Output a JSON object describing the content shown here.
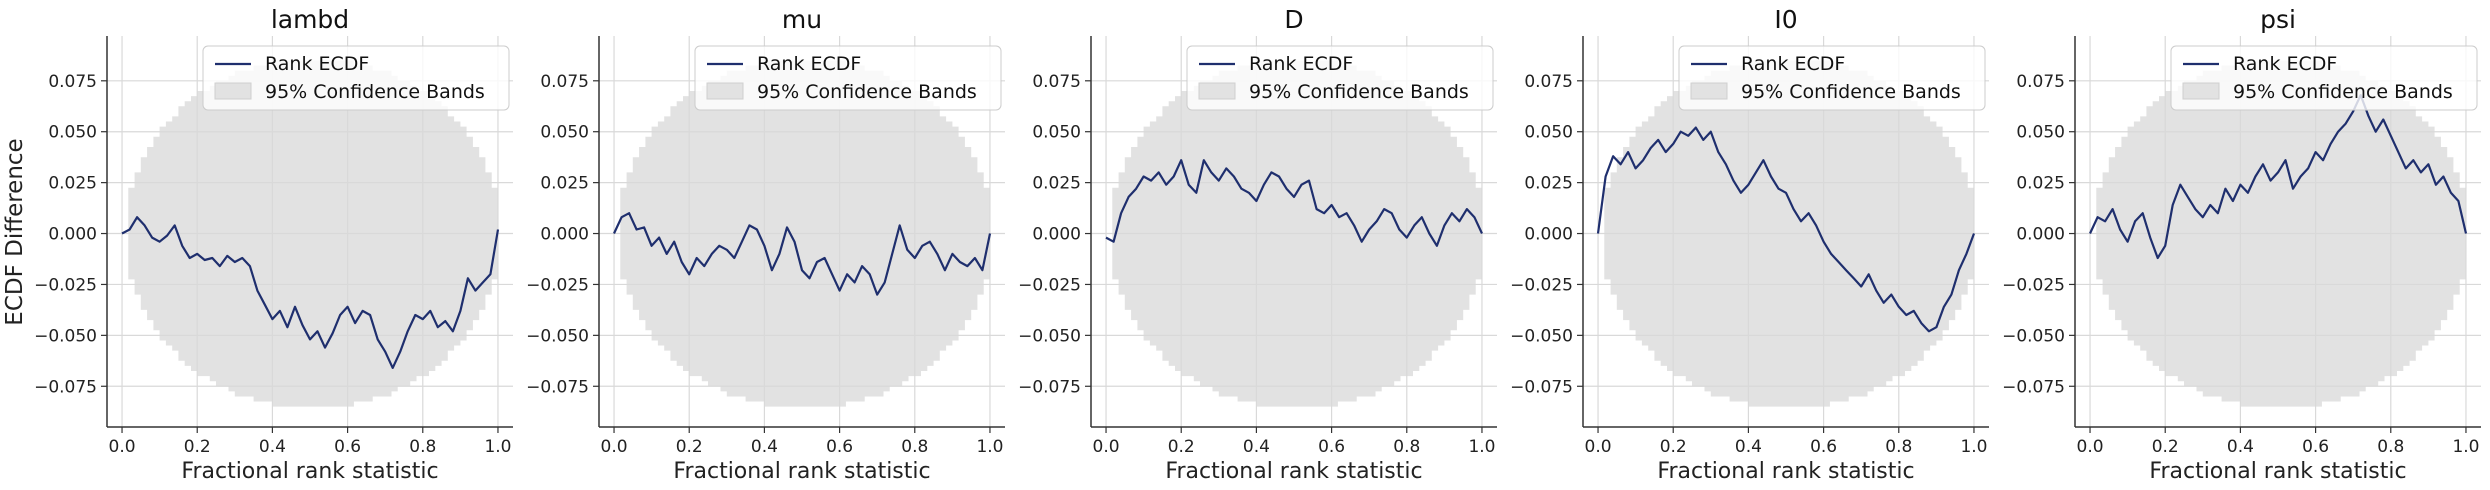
{
  "figure": {
    "ylabel": "ECDF Difference"
  },
  "legend": {
    "line_label": "Rank ECDF",
    "band_label": "95% Confidence Bands"
  },
  "colors": {
    "line": "#1f2f6e",
    "band": "#e2e2e2",
    "grid": "#d9d9d9",
    "axis": "#333333"
  },
  "chart_data": [
    {
      "type": "line",
      "title": "lambd",
      "xlabel": "Fractional rank statistic",
      "ylabel": "ECDF Difference",
      "xlim": [
        -0.04,
        1.04
      ],
      "ylim": [
        -0.095,
        0.097
      ],
      "xticks": [
        "0.0",
        "0.2",
        "0.4",
        "0.6",
        "0.8",
        "1.0"
      ],
      "yticks": [
        "0.075",
        "0.050",
        "0.025",
        "0.000",
        "−0.025",
        "−0.050",
        "−0.075"
      ],
      "grid": true,
      "legend_position": "top-right",
      "confidence_band_halfwidth": 0.086,
      "series": [
        {
          "name": "Rank ECDF",
          "x": [
            0.0,
            0.02,
            0.04,
            0.06,
            0.08,
            0.1,
            0.12,
            0.14,
            0.16,
            0.18,
            0.2,
            0.22,
            0.24,
            0.26,
            0.28,
            0.3,
            0.32,
            0.34,
            0.36,
            0.38,
            0.4,
            0.42,
            0.44,
            0.46,
            0.48,
            0.5,
            0.52,
            0.54,
            0.56,
            0.58,
            0.6,
            0.62,
            0.64,
            0.66,
            0.68,
            0.7,
            0.72,
            0.74,
            0.76,
            0.78,
            0.8,
            0.82,
            0.84,
            0.86,
            0.88,
            0.9,
            0.92,
            0.94,
            0.96,
            0.98,
            1.0
          ],
          "y": [
            0.0,
            0.002,
            0.008,
            0.004,
            -0.002,
            -0.004,
            -0.001,
            0.004,
            -0.006,
            -0.012,
            -0.01,
            -0.013,
            -0.012,
            -0.016,
            -0.011,
            -0.014,
            -0.012,
            -0.016,
            -0.028,
            -0.035,
            -0.042,
            -0.038,
            -0.046,
            -0.036,
            -0.045,
            -0.052,
            -0.048,
            -0.056,
            -0.049,
            -0.04,
            -0.036,
            -0.044,
            -0.038,
            -0.04,
            -0.052,
            -0.058,
            -0.066,
            -0.058,
            -0.048,
            -0.04,
            -0.042,
            -0.038,
            -0.046,
            -0.043,
            -0.048,
            -0.038,
            -0.022,
            -0.028,
            -0.024,
            -0.02,
            0.002
          ]
        }
      ]
    },
    {
      "type": "line",
      "title": "mu",
      "xlabel": "Fractional rank statistic",
      "ylabel": "",
      "xlim": [
        -0.04,
        1.04
      ],
      "ylim": [
        -0.095,
        0.097
      ],
      "xticks": [
        "0.0",
        "0.2",
        "0.4",
        "0.6",
        "0.8",
        "1.0"
      ],
      "yticks": [
        "0.075",
        "0.050",
        "0.025",
        "0.000",
        "−0.025",
        "−0.050",
        "−0.075"
      ],
      "grid": true,
      "legend_position": "top-right",
      "confidence_band_halfwidth": 0.086,
      "series": [
        {
          "name": "Rank ECDF",
          "x": [
            0.0,
            0.02,
            0.04,
            0.06,
            0.08,
            0.1,
            0.12,
            0.14,
            0.16,
            0.18,
            0.2,
            0.22,
            0.24,
            0.26,
            0.28,
            0.3,
            0.32,
            0.34,
            0.36,
            0.38,
            0.4,
            0.42,
            0.44,
            0.46,
            0.48,
            0.5,
            0.52,
            0.54,
            0.56,
            0.58,
            0.6,
            0.62,
            0.64,
            0.66,
            0.68,
            0.7,
            0.72,
            0.74,
            0.76,
            0.78,
            0.8,
            0.82,
            0.84,
            0.86,
            0.88,
            0.9,
            0.92,
            0.94,
            0.96,
            0.98,
            1.0
          ],
          "y": [
            0.0,
            0.008,
            0.01,
            0.002,
            0.003,
            -0.006,
            -0.002,
            -0.01,
            -0.004,
            -0.014,
            -0.02,
            -0.012,
            -0.016,
            -0.01,
            -0.006,
            -0.008,
            -0.012,
            -0.004,
            0.004,
            0.002,
            -0.006,
            -0.018,
            -0.01,
            0.003,
            -0.004,
            -0.018,
            -0.022,
            -0.014,
            -0.012,
            -0.02,
            -0.028,
            -0.02,
            -0.024,
            -0.016,
            -0.02,
            -0.03,
            -0.024,
            -0.01,
            0.004,
            -0.008,
            -0.012,
            -0.006,
            -0.004,
            -0.01,
            -0.018,
            -0.01,
            -0.014,
            -0.016,
            -0.012,
            -0.018,
            0.0
          ]
        }
      ]
    },
    {
      "type": "line",
      "title": "D",
      "xlabel": "Fractional rank statistic",
      "ylabel": "",
      "xlim": [
        -0.04,
        1.04
      ],
      "ylim": [
        -0.095,
        0.097
      ],
      "xticks": [
        "0.0",
        "0.2",
        "0.4",
        "0.6",
        "0.8",
        "1.0"
      ],
      "yticks": [
        "0.075",
        "0.050",
        "0.025",
        "0.000",
        "−0.025",
        "−0.050",
        "−0.075"
      ],
      "grid": true,
      "legend_position": "top-right",
      "confidence_band_halfwidth": 0.086,
      "series": [
        {
          "name": "Rank ECDF",
          "x": [
            0.0,
            0.02,
            0.04,
            0.06,
            0.08,
            0.1,
            0.12,
            0.14,
            0.16,
            0.18,
            0.2,
            0.22,
            0.24,
            0.26,
            0.28,
            0.3,
            0.32,
            0.34,
            0.36,
            0.38,
            0.4,
            0.42,
            0.44,
            0.46,
            0.48,
            0.5,
            0.52,
            0.54,
            0.56,
            0.58,
            0.6,
            0.62,
            0.64,
            0.66,
            0.68,
            0.7,
            0.72,
            0.74,
            0.76,
            0.78,
            0.8,
            0.82,
            0.84,
            0.86,
            0.88,
            0.9,
            0.92,
            0.94,
            0.96,
            0.98,
            1.0
          ],
          "y": [
            -0.002,
            -0.004,
            0.01,
            0.018,
            0.022,
            0.028,
            0.026,
            0.03,
            0.024,
            0.028,
            0.036,
            0.024,
            0.02,
            0.036,
            0.03,
            0.026,
            0.032,
            0.028,
            0.022,
            0.02,
            0.016,
            0.024,
            0.03,
            0.028,
            0.022,
            0.018,
            0.024,
            0.026,
            0.012,
            0.01,
            0.014,
            0.008,
            0.01,
            0.004,
            -0.004,
            0.002,
            0.006,
            0.012,
            0.01,
            0.002,
            -0.002,
            0.004,
            0.008,
            0.0,
            -0.006,
            0.004,
            0.01,
            0.006,
            0.012,
            0.008,
            0.0
          ]
        }
      ]
    },
    {
      "type": "line",
      "title": "I0",
      "xlabel": "Fractional rank statistic",
      "ylabel": "",
      "xlim": [
        -0.04,
        1.04
      ],
      "ylim": [
        -0.095,
        0.097
      ],
      "xticks": [
        "0.0",
        "0.2",
        "0.4",
        "0.6",
        "0.8",
        "1.0"
      ],
      "yticks": [
        "0.075",
        "0.050",
        "0.025",
        "0.000",
        "−0.025",
        "−0.050",
        "−0.075"
      ],
      "grid": true,
      "legend_position": "top-right",
      "confidence_band_halfwidth": 0.086,
      "series": [
        {
          "name": "Rank ECDF",
          "x": [
            0.0,
            0.02,
            0.04,
            0.06,
            0.08,
            0.1,
            0.12,
            0.14,
            0.16,
            0.18,
            0.2,
            0.22,
            0.24,
            0.26,
            0.28,
            0.3,
            0.32,
            0.34,
            0.36,
            0.38,
            0.4,
            0.42,
            0.44,
            0.46,
            0.48,
            0.5,
            0.52,
            0.54,
            0.56,
            0.58,
            0.6,
            0.62,
            0.64,
            0.66,
            0.68,
            0.7,
            0.72,
            0.74,
            0.76,
            0.78,
            0.8,
            0.82,
            0.84,
            0.86,
            0.88,
            0.9,
            0.92,
            0.94,
            0.96,
            0.98,
            1.0
          ],
          "y": [
            0.0,
            0.028,
            0.038,
            0.034,
            0.04,
            0.032,
            0.036,
            0.042,
            0.046,
            0.04,
            0.044,
            0.05,
            0.048,
            0.052,
            0.046,
            0.05,
            0.04,
            0.034,
            0.026,
            0.02,
            0.024,
            0.03,
            0.036,
            0.028,
            0.022,
            0.02,
            0.012,
            0.006,
            0.01,
            0.004,
            -0.004,
            -0.01,
            -0.014,
            -0.018,
            -0.022,
            -0.026,
            -0.02,
            -0.028,
            -0.034,
            -0.03,
            -0.036,
            -0.04,
            -0.038,
            -0.044,
            -0.048,
            -0.046,
            -0.036,
            -0.03,
            -0.018,
            -0.01,
            0.0
          ]
        }
      ]
    },
    {
      "type": "line",
      "title": "psi",
      "xlabel": "Fractional rank statistic",
      "ylabel": "",
      "xlim": [
        -0.04,
        1.04
      ],
      "ylim": [
        -0.095,
        0.097
      ],
      "xticks": [
        "0.0",
        "0.2",
        "0.4",
        "0.6",
        "0.8",
        "1.0"
      ],
      "yticks": [
        "0.075",
        "0.050",
        "0.025",
        "0.000",
        "−0.025",
        "−0.050",
        "−0.075"
      ],
      "grid": true,
      "legend_position": "top-right",
      "confidence_band_halfwidth": 0.086,
      "series": [
        {
          "name": "Rank ECDF",
          "x": [
            0.0,
            0.02,
            0.04,
            0.06,
            0.08,
            0.1,
            0.12,
            0.14,
            0.16,
            0.18,
            0.2,
            0.22,
            0.24,
            0.26,
            0.28,
            0.3,
            0.32,
            0.34,
            0.36,
            0.38,
            0.4,
            0.42,
            0.44,
            0.46,
            0.48,
            0.5,
            0.52,
            0.54,
            0.56,
            0.58,
            0.6,
            0.62,
            0.64,
            0.66,
            0.68,
            0.7,
            0.72,
            0.74,
            0.76,
            0.78,
            0.8,
            0.82,
            0.84,
            0.86,
            0.88,
            0.9,
            0.92,
            0.94,
            0.96,
            0.98,
            1.0
          ],
          "y": [
            0.0,
            0.008,
            0.006,
            0.012,
            0.002,
            -0.004,
            0.006,
            0.01,
            -0.002,
            -0.012,
            -0.006,
            0.014,
            0.024,
            0.018,
            0.012,
            0.008,
            0.014,
            0.01,
            0.022,
            0.016,
            0.024,
            0.02,
            0.028,
            0.034,
            0.026,
            0.03,
            0.036,
            0.022,
            0.028,
            0.032,
            0.04,
            0.036,
            0.044,
            0.05,
            0.054,
            0.06,
            0.068,
            0.058,
            0.05,
            0.056,
            0.048,
            0.04,
            0.032,
            0.036,
            0.03,
            0.034,
            0.024,
            0.028,
            0.02,
            0.016,
            0.0
          ]
        }
      ]
    }
  ]
}
